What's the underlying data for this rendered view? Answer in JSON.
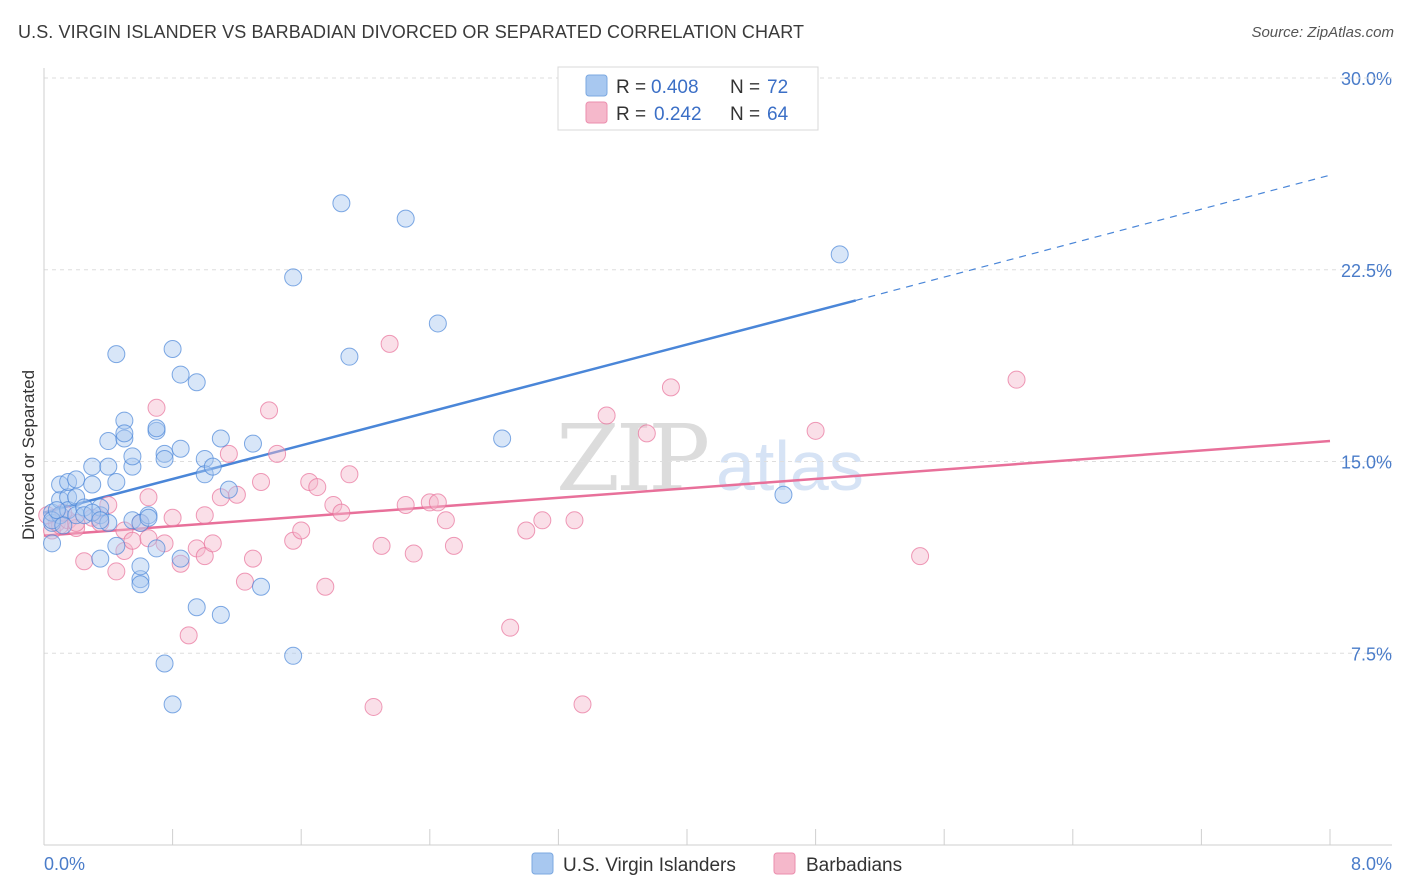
{
  "title": "U.S. VIRGIN ISLANDER VS BARBADIAN DIVORCED OR SEPARATED CORRELATION CHART",
  "source": "Source: ZipAtlas.com",
  "watermark": {
    "zip": "ZIP",
    "atlas": "atlas"
  },
  "legend_top": [
    {
      "r_label": "R =",
      "r_value": "0.408",
      "n_label": "N =",
      "n_value": "72",
      "color": "#a8c8f0"
    },
    {
      "r_label": "R =",
      "r_value": "0.242",
      "n_label": "N =",
      "n_value": "64",
      "color": "#f5b8cb"
    }
  ],
  "legend_bottom": [
    {
      "label": "U.S. Virgin Islanders",
      "color": "#a8c8f0"
    },
    {
      "label": "Barbadians",
      "color": "#f5b8cb"
    }
  ],
  "chart_data": {
    "type": "scatter",
    "title": "U.S. VIRGIN ISLANDER VS BARBADIAN DIVORCED OR SEPARATED CORRELATION CHART",
    "xlabel": "",
    "ylabel": "Divorced or Separated",
    "xlim": [
      0.0,
      8.0
    ],
    "ylim": [
      0.0,
      30.0
    ],
    "x_tick_labels": [
      "0.0%",
      "8.0%"
    ],
    "y_ticks": [
      7.5,
      15.0,
      22.5,
      30.0
    ],
    "y_tick_labels": [
      "7.5%",
      "15.0%",
      "22.5%",
      "30.0%"
    ],
    "grid": true,
    "series": [
      {
        "name": "U.S. Virgin Islanders",
        "color": "#4a86d8",
        "fill": "#a8c8f0",
        "trend": {
          "x0": 0.0,
          "y0": 13.0,
          "x1": 5.05,
          "y1": 21.3,
          "dash_to_x": 8.0,
          "dash_to_y": 26.2
        },
        "points": [
          [
            0.05,
            12.6
          ],
          [
            0.05,
            13.0
          ],
          [
            0.05,
            11.8
          ],
          [
            0.1,
            13.5
          ],
          [
            0.1,
            12.9
          ],
          [
            0.1,
            14.1
          ],
          [
            0.15,
            13.6
          ],
          [
            0.15,
            13.1
          ],
          [
            0.15,
            14.2
          ],
          [
            0.2,
            12.9
          ],
          [
            0.2,
            13.6
          ],
          [
            0.2,
            14.3
          ],
          [
            0.25,
            13.2
          ],
          [
            0.25,
            12.9
          ],
          [
            0.3,
            14.1
          ],
          [
            0.3,
            14.8
          ],
          [
            0.35,
            12.9
          ],
          [
            0.35,
            13.2
          ],
          [
            0.35,
            11.2
          ],
          [
            0.4,
            14.8
          ],
          [
            0.4,
            15.8
          ],
          [
            0.4,
            12.6
          ],
          [
            0.45,
            19.2
          ],
          [
            0.45,
            11.7
          ],
          [
            0.45,
            14.2
          ],
          [
            0.5,
            15.9
          ],
          [
            0.5,
            16.6
          ],
          [
            0.5,
            16.1
          ],
          [
            0.55,
            12.7
          ],
          [
            0.55,
            14.8
          ],
          [
            0.55,
            15.2
          ],
          [
            0.6,
            10.4
          ],
          [
            0.6,
            12.6
          ],
          [
            0.6,
            10.9
          ],
          [
            0.6,
            10.2
          ],
          [
            0.65,
            12.9
          ],
          [
            0.65,
            12.8
          ],
          [
            0.7,
            16.2
          ],
          [
            0.7,
            11.6
          ],
          [
            0.7,
            16.3
          ],
          [
            0.75,
            15.3
          ],
          [
            0.75,
            7.1
          ],
          [
            0.75,
            15.1
          ],
          [
            0.8,
            19.4
          ],
          [
            0.8,
            5.5
          ],
          [
            0.85,
            18.4
          ],
          [
            0.85,
            15.5
          ],
          [
            0.85,
            11.2
          ],
          [
            0.95,
            18.1
          ],
          [
            0.95,
            9.3
          ],
          [
            1.0,
            15.1
          ],
          [
            1.0,
            14.5
          ],
          [
            1.05,
            14.8
          ],
          [
            1.1,
            15.9
          ],
          [
            1.1,
            9.0
          ],
          [
            1.15,
            13.9
          ],
          [
            1.3,
            15.7
          ],
          [
            1.35,
            10.1
          ],
          [
            1.55,
            22.2
          ],
          [
            1.55,
            7.4
          ],
          [
            1.85,
            25.1
          ],
          [
            1.9,
            19.1
          ],
          [
            2.25,
            24.5
          ],
          [
            2.45,
            20.4
          ],
          [
            2.85,
            15.9
          ],
          [
            4.6,
            13.7
          ],
          [
            4.95,
            23.1
          ],
          [
            0.05,
            12.7
          ],
          [
            0.08,
            13.1
          ],
          [
            0.12,
            12.5
          ],
          [
            0.3,
            13.0
          ],
          [
            0.35,
            12.7
          ]
        ]
      },
      {
        "name": "Barbadians",
        "color": "#e8709a",
        "fill": "#f5b8cb",
        "trend": {
          "x0": 0.0,
          "y0": 12.1,
          "x1": 8.0,
          "y1": 15.8
        },
        "points": [
          [
            0.05,
            12.3
          ],
          [
            0.08,
            12.6
          ],
          [
            0.1,
            12.5
          ],
          [
            0.15,
            12.7
          ],
          [
            0.2,
            12.4
          ],
          [
            0.25,
            11.1
          ],
          [
            0.3,
            12.8
          ],
          [
            0.35,
            12.6
          ],
          [
            0.4,
            13.3
          ],
          [
            0.45,
            10.7
          ],
          [
            0.5,
            11.5
          ],
          [
            0.5,
            12.3
          ],
          [
            0.55,
            11.9
          ],
          [
            0.6,
            12.6
          ],
          [
            0.65,
            13.6
          ],
          [
            0.65,
            12.0
          ],
          [
            0.7,
            17.1
          ],
          [
            0.75,
            11.8
          ],
          [
            0.8,
            12.8
          ],
          [
            0.85,
            11.0
          ],
          [
            0.9,
            8.2
          ],
          [
            0.95,
            11.6
          ],
          [
            1.0,
            12.9
          ],
          [
            1.0,
            11.3
          ],
          [
            1.05,
            11.8
          ],
          [
            1.1,
            13.6
          ],
          [
            1.15,
            15.3
          ],
          [
            1.2,
            13.7
          ],
          [
            1.25,
            10.3
          ],
          [
            1.3,
            11.2
          ],
          [
            1.35,
            14.2
          ],
          [
            1.4,
            17.0
          ],
          [
            1.45,
            15.3
          ],
          [
            1.55,
            11.9
          ],
          [
            1.6,
            12.3
          ],
          [
            1.65,
            14.2
          ],
          [
            1.7,
            14.0
          ],
          [
            1.75,
            10.1
          ],
          [
            1.8,
            13.3
          ],
          [
            1.85,
            13.0
          ],
          [
            1.9,
            14.5
          ],
          [
            2.05,
            5.4
          ],
          [
            2.1,
            11.7
          ],
          [
            2.15,
            19.6
          ],
          [
            2.25,
            13.3
          ],
          [
            2.3,
            11.4
          ],
          [
            2.4,
            13.4
          ],
          [
            2.45,
            13.4
          ],
          [
            2.5,
            12.7
          ],
          [
            2.55,
            11.7
          ],
          [
            2.9,
            8.5
          ],
          [
            3.0,
            12.3
          ],
          [
            3.1,
            12.7
          ],
          [
            3.3,
            12.7
          ],
          [
            3.35,
            5.5
          ],
          [
            3.5,
            16.8
          ],
          [
            3.75,
            16.1
          ],
          [
            3.9,
            17.9
          ],
          [
            4.8,
            16.2
          ],
          [
            5.45,
            11.3
          ],
          [
            6.05,
            18.2
          ],
          [
            0.02,
            12.9
          ],
          [
            0.12,
            13.0
          ],
          [
            0.2,
            12.6
          ]
        ]
      }
    ]
  }
}
